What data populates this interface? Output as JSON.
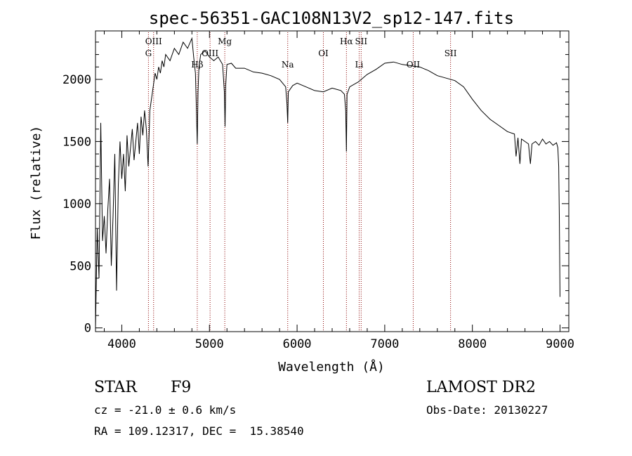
{
  "chart_data": {
    "type": "line",
    "title": "spec-56351-GAC108N13V2_sp12-147.fits",
    "xlabel": "Wavelength (Å)",
    "ylabel": "Flux (relative)",
    "xlim": [
      3700,
      9100
    ],
    "ylim": [
      -30,
      2390
    ],
    "x_ticks": [
      4000,
      5000,
      6000,
      7000,
      8000,
      9000
    ],
    "y_ticks": [
      0,
      500,
      1000,
      1500,
      2000
    ],
    "series": [
      {
        "x": [
          3700,
          3720,
          3740,
          3760,
          3780,
          3800,
          3820,
          3840,
          3860,
          3880,
          3900,
          3920,
          3940,
          3960,
          3980,
          4000,
          4020,
          4040,
          4060,
          4080,
          4100,
          4120,
          4140,
          4160,
          4180,
          4200,
          4220,
          4240,
          4260,
          4280,
          4300,
          4320,
          4340,
          4360,
          4380,
          4400,
          4420,
          4440,
          4460,
          4480,
          4500,
          4550,
          4600,
          4650,
          4700,
          4750,
          4800,
          4820,
          4840,
          4850,
          4861,
          4870,
          4880,
          4900,
          4950,
          5000,
          5050,
          5100,
          5150,
          5170,
          5178,
          5185,
          5200,
          5250,
          5300,
          5400,
          5500,
          5600,
          5700,
          5800,
          5870,
          5885,
          5893,
          5900,
          5950,
          6000,
          6100,
          6200,
          6300,
          6400,
          6500,
          6540,
          6555,
          6563,
          6570,
          6600,
          6700,
          6800,
          6900,
          7000,
          7100,
          7200,
          7300,
          7400,
          7500,
          7600,
          7700,
          7800,
          7900,
          8000,
          8100,
          8200,
          8300,
          8400,
          8480,
          8498,
          8520,
          8542,
          8560,
          8600,
          8640,
          8662,
          8680,
          8720,
          8760,
          8800,
          8840,
          8880,
          8920,
          8960,
          8975,
          8985,
          8992,
          9000
        ],
        "y": [
          0,
          800,
          400,
          1650,
          700,
          900,
          600,
          950,
          1200,
          500,
          900,
          1400,
          300,
          1150,
          1500,
          1200,
          1400,
          1100,
          1550,
          1300,
          1450,
          1600,
          1350,
          1500,
          1650,
          1400,
          1700,
          1550,
          1750,
          1600,
          1300,
          1750,
          1850,
          1950,
          2050,
          2000,
          2100,
          2050,
          2150,
          2100,
          2200,
          2150,
          2250,
          2200,
          2300,
          2250,
          2330,
          2180,
          2050,
          1800,
          1480,
          1900,
          2100,
          2200,
          2230,
          2180,
          2150,
          2180,
          2120,
          1900,
          1620,
          1950,
          2120,
          2130,
          2090,
          2090,
          2060,
          2050,
          2030,
          2000,
          1940,
          1800,
          1650,
          1900,
          1950,
          1970,
          1940,
          1910,
          1900,
          1930,
          1910,
          1880,
          1750,
          1420,
          1880,
          1940,
          1980,
          2040,
          2080,
          2130,
          2140,
          2120,
          2110,
          2100,
          2070,
          2030,
          2010,
          1990,
          1940,
          1840,
          1750,
          1680,
          1630,
          1580,
          1560,
          1380,
          1530,
          1320,
          1520,
          1500,
          1480,
          1320,
          1480,
          1500,
          1470,
          1520,
          1480,
          1500,
          1470,
          1490,
          1450,
          1300,
          900,
          250
        ]
      }
    ],
    "lines": [
      {
        "name": "G",
        "x": 4304
      },
      {
        "name": "OIII",
        "x": 4363
      },
      {
        "name": "Hβ",
        "x": 4861
      },
      {
        "name": "OIII",
        "x": 5007
      },
      {
        "name": "Mg",
        "x": 5175
      },
      {
        "name": "Na",
        "x": 5893
      },
      {
        "name": "OI",
        "x": 6300
      },
      {
        "name": "Hα",
        "x": 6563
      },
      {
        "name": "Li",
        "x": 6708
      },
      {
        "name": "SII",
        "x": 6731
      },
      {
        "name": "OII",
        "x": 7325
      },
      {
        "name": "SII",
        "x": 7751
      }
    ]
  },
  "info": {
    "object_class": "STAR",
    "subclass": "F9",
    "survey": "LAMOST DR2",
    "cz": "cz = -21.0 ± 0.6 km/s",
    "obs_date": "Obs-Date: 20130227",
    "coords": "RA = 109.12317, DEC =  15.38540"
  },
  "colors": {
    "spectrum": "#000000",
    "line_marker": "#8b0000",
    "axis": "#000000"
  }
}
